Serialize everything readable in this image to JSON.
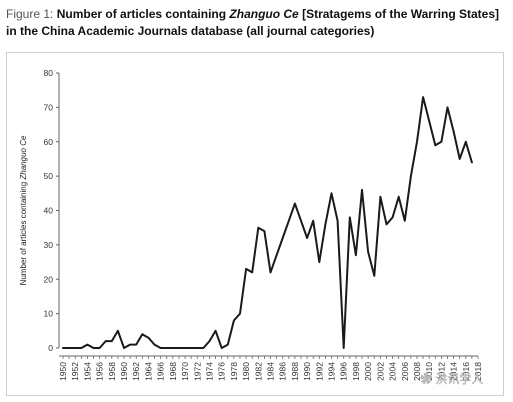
{
  "caption": {
    "lead": "Figure 1: ",
    "part1": "Number of articles containing ",
    "ital": "Zhanguo Ce",
    "part2": " [Stratagems of the Warring States] in the China Academic Journals database (all journal categories)"
  },
  "watermark": "✿ 洪讯学人",
  "colors": {
    "line": "#1a1a1a",
    "axis": "#666666"
  },
  "chart_data": {
    "type": "line",
    "ylabel_pre": "Number of articles containing ",
    "ylabel_ital": "Zhanguo Ce",
    "xlabel": "",
    "ylim": [
      0,
      80
    ],
    "yticks": [
      0,
      10,
      20,
      30,
      40,
      50,
      60,
      70,
      80
    ],
    "xlim": [
      1950,
      2018
    ],
    "xticks": [
      1950,
      1952,
      1954,
      1956,
      1958,
      1960,
      1962,
      1964,
      1966,
      1968,
      1970,
      1972,
      1974,
      1976,
      1978,
      1980,
      1982,
      1984,
      1986,
      1988,
      1990,
      1992,
      1994,
      1996,
      1998,
      2000,
      2002,
      2004,
      2006,
      2008,
      2010,
      2012,
      2014,
      2016,
      2018
    ],
    "grid": false,
    "series": [
      {
        "x": [
          1950,
          1951,
          1952,
          1953,
          1954,
          1955,
          1956,
          1957,
          1958,
          1959,
          1960,
          1961,
          1962,
          1963,
          1964,
          1965,
          1966,
          1967,
          1968,
          1969,
          1970,
          1971,
          1972,
          1973,
          1974,
          1975,
          1976,
          1977,
          1978,
          1979,
          1980,
          1981,
          1982,
          1983,
          1984,
          1985,
          1986,
          1987,
          1988,
          1989,
          1990,
          1991,
          1992,
          1993,
          1994,
          1995,
          1996,
          1997,
          1998,
          1999,
          2000,
          2001,
          2002,
          2003,
          2004,
          2005,
          2006,
          2007,
          2008,
          2009,
          2010,
          2011,
          2012,
          2013,
          2014,
          2015,
          2016,
          2017
        ],
        "values": [
          0,
          0,
          0,
          0,
          1,
          0,
          0,
          2,
          2,
          5,
          0,
          1,
          1,
          4,
          3,
          1,
          0,
          0,
          0,
          0,
          0,
          0,
          0,
          0,
          2,
          5,
          0,
          1,
          8,
          10,
          23,
          22,
          35,
          34,
          22,
          27,
          32,
          37,
          42,
          37,
          32,
          37,
          25,
          36,
          45,
          37,
          0,
          38,
          27,
          46,
          28,
          21,
          44,
          36,
          38,
          44,
          37,
          50,
          60,
          73,
          66,
          59,
          60,
          70,
          63,
          55,
          60,
          54
        ]
      }
    ]
  }
}
